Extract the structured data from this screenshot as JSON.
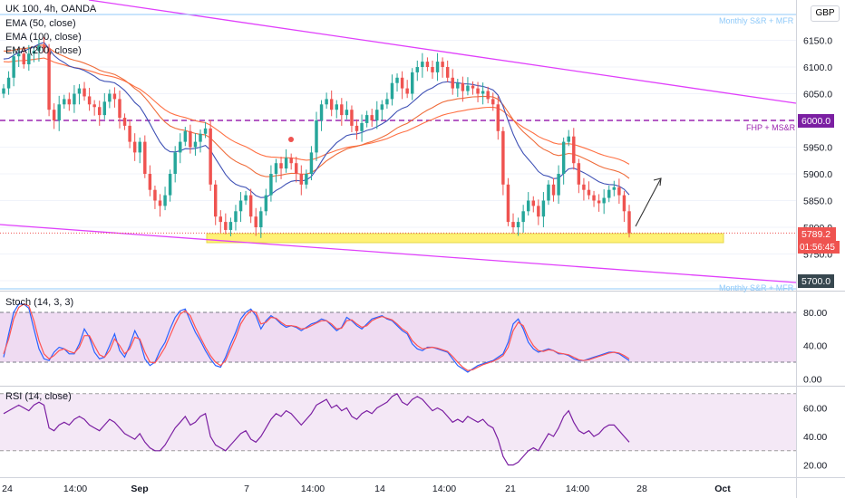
{
  "header": {
    "symbol": "UK 100, 4h, OANDA",
    "ema50": "EMA (50, close)",
    "ema100": "EMA (100, close)",
    "ema200": "EMA (200, close)",
    "currency": "GBP"
  },
  "panels": {
    "stoch": "Stoch (14, 3, 3)",
    "rsi": "RSI (14, close)"
  },
  "annotations": {
    "monthly_top": "Monthly S&R + MFR",
    "fhp": "FHP + MS&R",
    "monthly_bottom": "Monthly S&R + MFR"
  },
  "price_tags": {
    "level_6000": "6000.0",
    "last_price": "5789.2",
    "countdown": "01:56:45",
    "level_5700": "5700.0"
  },
  "chart_data": [
    {
      "type": "candlestick",
      "title": "UK 100, 4h, OANDA",
      "ylim": [
        5680,
        6190
      ],
      "y_ticks": [
        5700,
        5750,
        5800,
        5850,
        5900,
        5950,
        6000,
        6050,
        6100,
        6150
      ],
      "y_tick_labels": [
        "5700.0",
        "5750.0",
        "5800.0",
        "5850.0",
        "5900.0",
        "5950.0",
        "6000.0",
        "6050.0",
        "6100.0",
        "6150.0"
      ],
      "x_tick_labels": [
        "24",
        "14:00",
        "Sep",
        "7",
        "14:00",
        "14",
        "14:00",
        "21",
        "14:00",
        "28",
        "Oct"
      ],
      "close": [
        6060,
        6080,
        6120,
        6125,
        6105,
        6125,
        6130,
        6140,
        6135,
        6020,
        6000,
        6030,
        6040,
        6030,
        6050,
        6060,
        6045,
        6030,
        6025,
        6010,
        6035,
        6050,
        6040,
        6005,
        5990,
        5960,
        5940,
        5960,
        5900,
        5870,
        5850,
        5840,
        5860,
        5900,
        5940,
        5960,
        5980,
        5950,
        5960,
        5975,
        5985,
        5880,
        5820,
        5810,
        5795,
        5810,
        5830,
        5850,
        5860,
        5820,
        5800,
        5830,
        5860,
        5900,
        5920,
        5910,
        5930,
        5920,
        5900,
        5880,
        5900,
        5940,
        6000,
        6030,
        6040,
        6020,
        6030,
        6010,
        6020,
        5990,
        5980,
        5995,
        6010,
        6000,
        6020,
        6030,
        6040,
        6070,
        6080,
        6060,
        6050,
        6090,
        6100,
        6110,
        6100,
        6090,
        6110,
        6100,
        6080,
        6060,
        6070,
        6055,
        6065,
        6060,
        6050,
        6055,
        6040,
        6030,
        5980,
        5880,
        5810,
        5800,
        5810,
        5830,
        5850,
        5840,
        5820,
        5850,
        5880,
        5860,
        5900,
        5960,
        5970,
        5920,
        5880,
        5870,
        5860,
        5850,
        5845,
        5855,
        5870,
        5875,
        5860,
        5830,
        5789
      ],
      "ema50_endpoints": [
        6115,
        5920
      ],
      "ema100_endpoints": [
        6130,
        5955
      ],
      "ema200_endpoints": [
        6110,
        6000
      ],
      "horizontal_levels": [
        {
          "price": 6000,
          "label": "FHP + MS&R",
          "style": "dashed"
        },
        {
          "price": 6225,
          "label": "Monthly S&R + MFR",
          "style": "solid"
        },
        {
          "price": 5700,
          "label": "Monthly S&R + MFR",
          "style": "solid"
        }
      ],
      "support_zone": [
        5780,
        5797
      ]
    },
    {
      "type": "line",
      "title": "Stoch (14, 3, 3)",
      "ylim": [
        0,
        100
      ],
      "y_ticks": [
        0,
        40,
        80
      ],
      "y_tick_labels": [
        "0.00",
        "40.00",
        "80.00"
      ],
      "band": [
        20,
        80
      ],
      "series": [
        {
          "values": [
            26,
            54,
            80,
            90,
            90,
            85,
            60,
            36,
            24,
            22,
            32,
            38,
            36,
            30,
            30,
            42,
            60,
            50,
            32,
            24,
            26,
            40,
            54,
            34,
            26,
            40,
            58,
            46,
            24,
            16,
            20,
            34,
            44,
            60,
            74,
            82,
            84,
            70,
            56,
            46,
            34,
            24,
            16,
            14,
            26,
            42,
            56,
            72,
            80,
            84,
            76,
            60,
            70,
            76,
            72,
            66,
            62,
            64,
            62,
            58,
            62,
            66,
            68,
            72,
            70,
            64,
            58,
            62,
            74,
            70,
            64,
            60,
            66,
            72,
            74,
            76,
            72,
            70,
            64,
            58,
            54,
            42,
            36,
            34,
            38,
            38,
            36,
            34,
            32,
            24,
            16,
            12,
            8,
            12,
            16,
            18,
            20,
            22,
            26,
            30,
            44,
            66,
            72,
            60,
            44,
            36,
            32,
            34,
            36,
            34,
            30,
            30,
            28,
            24,
            22,
            22,
            24,
            26,
            28,
            30,
            32,
            32,
            30,
            26,
            22
          ]
        },
        {
          "values": [
            30,
            48,
            72,
            86,
            90,
            88,
            70,
            46,
            30,
            24,
            28,
            34,
            36,
            33,
            31,
            38,
            52,
            52,
            40,
            29,
            26,
            34,
            48,
            40,
            30,
            36,
            50,
            48,
            32,
            20,
            19,
            28,
            38,
            52,
            66,
            78,
            82,
            76,
            62,
            50,
            38,
            28,
            20,
            16,
            22,
            36,
            50,
            66,
            76,
            82,
            80,
            66,
            68,
            74,
            73,
            68,
            64,
            64,
            63,
            60,
            61,
            64,
            67,
            70,
            70,
            66,
            60,
            61,
            70,
            71,
            66,
            62,
            64,
            70,
            73,
            75,
            73,
            71,
            66,
            60,
            56,
            46,
            40,
            36,
            37,
            38,
            37,
            35,
            33,
            27,
            20,
            14,
            10,
            11,
            14,
            17,
            19,
            21,
            24,
            28,
            38,
            58,
            68,
            64,
            50,
            40,
            34,
            33,
            35,
            34,
            31,
            30,
            29,
            26,
            23,
            22,
            23,
            25,
            27,
            29,
            31,
            32,
            31,
            28,
            24
          ]
        }
      ]
    },
    {
      "type": "line",
      "title": "RSI (14, close)",
      "ylim": [
        12,
        72
      ],
      "y_ticks": [
        20,
        40,
        60
      ],
      "y_tick_labels": [
        "20.00",
        "40.00",
        "60.00"
      ],
      "band": [
        30,
        70
      ],
      "series": [
        {
          "values": [
            56,
            58,
            60,
            62,
            60,
            58,
            62,
            64,
            62,
            46,
            44,
            48,
            50,
            48,
            52,
            54,
            52,
            48,
            46,
            44,
            48,
            52,
            50,
            46,
            42,
            40,
            38,
            42,
            36,
            32,
            30,
            30,
            34,
            40,
            46,
            50,
            54,
            48,
            50,
            54,
            56,
            40,
            34,
            32,
            30,
            34,
            38,
            42,
            44,
            38,
            36,
            40,
            46,
            52,
            56,
            54,
            58,
            56,
            52,
            48,
            52,
            56,
            62,
            64,
            66,
            60,
            62,
            58,
            60,
            54,
            52,
            56,
            58,
            56,
            60,
            62,
            64,
            68,
            70,
            64,
            62,
            66,
            68,
            66,
            62,
            58,
            60,
            58,
            54,
            50,
            52,
            50,
            54,
            52,
            50,
            52,
            48,
            46,
            38,
            26,
            20,
            20,
            22,
            26,
            30,
            32,
            30,
            36,
            42,
            40,
            46,
            54,
            58,
            50,
            44,
            42,
            44,
            40,
            42,
            46,
            48,
            48,
            44,
            40,
            36
          ]
        }
      ]
    }
  ]
}
